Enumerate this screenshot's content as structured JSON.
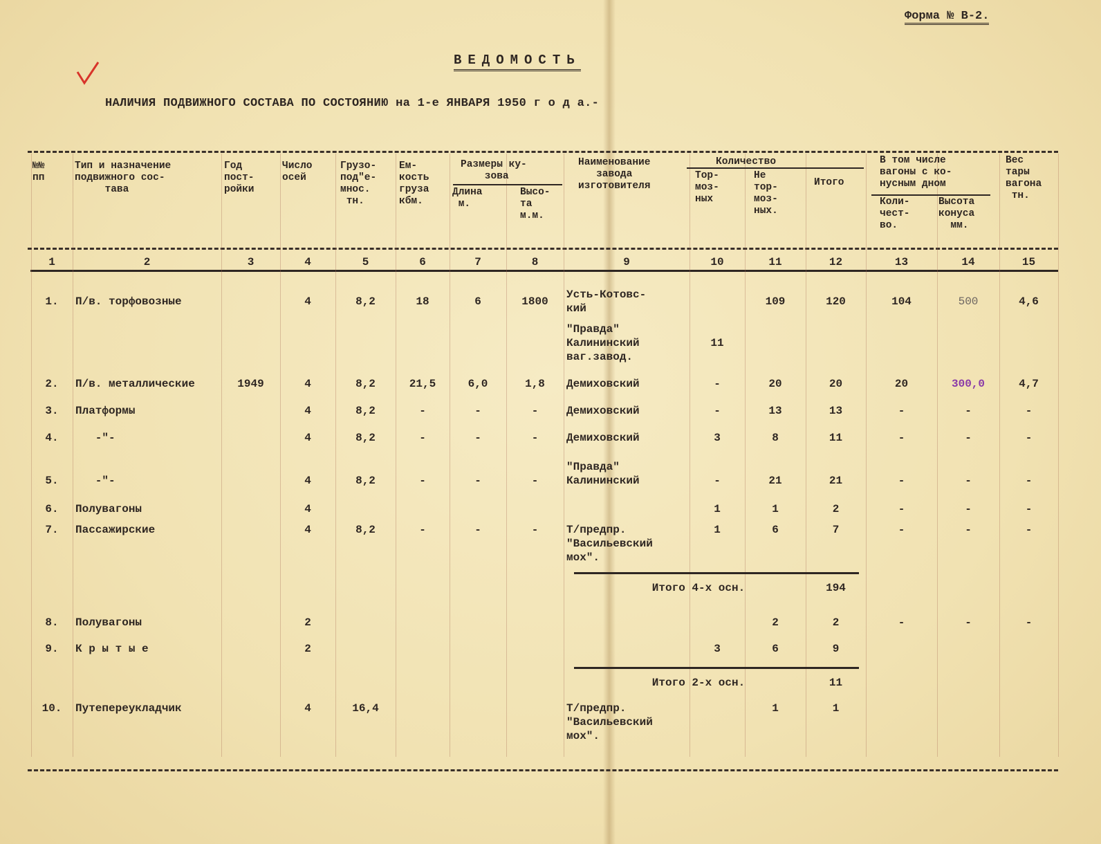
{
  "document": {
    "form_number": "Форма № В-2.",
    "title": "ВЕДОМОСТЬ",
    "subtitle": "НАЛИЧИЯ ПОДВИЖНОГО СОСТАВА ПО СОСТОЯНИЮ на 1-е ЯНВАРЯ 1950  г о д а.-",
    "check_mark_color": "#d8342a",
    "ink_color": "#2e2622"
  },
  "table": {
    "headers": {
      "c1": "№№\nпп",
      "c2": "Тип и назначение\nподвижного сос-\n     тава",
      "c3": "Год\nпост-\nройки",
      "c4": "Число\nосей",
      "c5": "Грузо-\nпод\"е-\nмнос.\n тн.",
      "c6": "Ем-\nкость\nгруза\nкбм.",
      "group78": "Размеры ку-\n    зова",
      "c7": "Длина\n м.",
      "c8": "Высо-\nта\nм.м.",
      "c9": "Наименование\n   завода\nизготовителя",
      "group1012": "Количество",
      "c10": "Тор-\nмоз-\nных",
      "c11": "Не\nтор-\nмоз-\nных.",
      "c12": "Итого",
      "group1314": "В том числе\nвагоны с ко-\nнусным дном",
      "c13": "Коли-\nчест-\nво.",
      "c14": "Высота\nконуса\n  мм.",
      "c15": "Вес\nтары\nвагона\n тн."
    },
    "column_numbers": [
      "1",
      "2",
      "3",
      "4",
      "5",
      "6",
      "7",
      "8",
      "9",
      "10",
      "11",
      "12",
      "13",
      "14",
      "15"
    ],
    "rows": [
      {
        "type": "data",
        "cells": [
          "1.",
          "П/в. торфовозные",
          "",
          "4",
          "8,2",
          "18",
          "6",
          "1800",
          "Усть-Котовс-\nкий",
          "",
          "109",
          "120",
          "104",
          "500",
          "4,6"
        ]
      },
      {
        "type": "data",
        "cells": [
          "",
          "",
          "",
          "",
          "",
          "",
          "",
          "",
          "\"Правда\"\nКалининский\nваг.завод.",
          "11",
          "",
          "",
          "",
          "",
          ""
        ]
      },
      {
        "type": "data",
        "cells": [
          "2.",
          "П/в. металлические",
          "1949",
          "4",
          "8,2",
          "21,5",
          "6,0",
          "1,8",
          "Демиховский",
          "-",
          "20",
          "20",
          "20",
          "300,0",
          "4,7"
        ]
      },
      {
        "type": "data",
        "cells": [
          "3.",
          "Платформы",
          "",
          "4",
          "8,2",
          "-",
          "-",
          "-",
          "Демиховский",
          "-",
          "13",
          "13",
          "-",
          "-",
          "-"
        ]
      },
      {
        "type": "data",
        "cells": [
          "4.",
          "   -\"-",
          "",
          "4",
          "8,2",
          "-",
          "-",
          "-",
          "Демиховский",
          "3",
          "8",
          "11",
          "-",
          "-",
          "-"
        ]
      },
      {
        "type": "data",
        "cells": [
          "5.",
          "   -\"-",
          "",
          "4",
          "8,2",
          "-",
          "-",
          "-",
          "\"Правда\"\nКалининский",
          "-",
          "21",
          "21",
          "-",
          "-",
          "-"
        ]
      },
      {
        "type": "data",
        "cells": [
          "6.",
          "Полувагоны",
          "",
          "4",
          "",
          "",
          "",
          "",
          "",
          "1",
          "1",
          "2",
          "-",
          "-",
          "-"
        ]
      },
      {
        "type": "data",
        "cells": [
          "7.",
          "Пассажирские",
          "",
          "4",
          "8,2",
          "-",
          "-",
          "-",
          "Т/предпр.\n\"Васильевский\nмох\".",
          "1",
          "6",
          "7",
          "-",
          "-",
          "-"
        ]
      },
      {
        "type": "subtotal",
        "label": "Итого 4-х осн.",
        "value": "194"
      },
      {
        "type": "data",
        "cells": [
          "8.",
          "Полувагоны",
          "",
          "2",
          "",
          "",
          "",
          "",
          "",
          "",
          "2",
          "2",
          "-",
          "-",
          "-"
        ]
      },
      {
        "type": "data",
        "cells": [
          "9.",
          "К р ы т ы е",
          "",
          "2",
          "",
          "",
          "",
          "",
          "",
          "3",
          "6",
          "9",
          "",
          "",
          ""
        ]
      },
      {
        "type": "subtotal",
        "label": "Итого 2-х осн.",
        "value": "11"
      },
      {
        "type": "data",
        "cells": [
          "10.",
          "Путепереукладчик",
          "",
          "4",
          "16,4",
          "",
          "",
          "",
          "Т/предпр.\n\"Васильевский\nмох\".",
          "",
          "1",
          "1",
          "",
          "",
          ""
        ]
      }
    ]
  }
}
